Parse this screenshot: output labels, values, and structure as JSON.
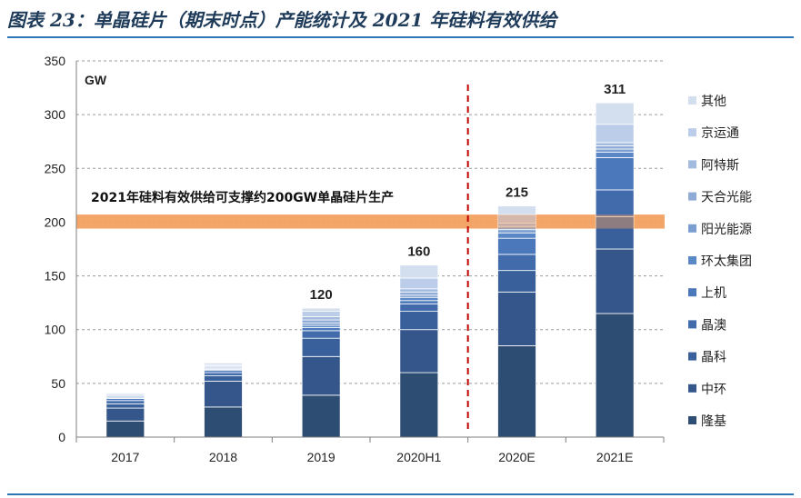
{
  "header": {
    "title": "图表 23：单晶硅片（期末时点）产能统计及 2021 年硅料有效供给"
  },
  "chart_data": {
    "type": "bar",
    "stacked": true,
    "unit": "GW",
    "categories": [
      "2017",
      "2018",
      "2019",
      "2020H1",
      "2020E",
      "2021E"
    ],
    "ylim": [
      0,
      350
    ],
    "yticks": [
      0,
      50,
      100,
      150,
      200,
      250,
      300,
      350
    ],
    "grid": true,
    "legend_position": "right",
    "totals": [
      "",
      "",
      "120",
      "160",
      "215",
      "311"
    ],
    "series": [
      {
        "name": "隆基",
        "color": "#2e4d72",
        "values": [
          15,
          28,
          39,
          60,
          85,
          115
        ]
      },
      {
        "name": "中环",
        "color": "#34568a",
        "values": [
          12,
          24,
          36,
          40,
          50,
          60
        ]
      },
      {
        "name": "晶科",
        "color": "#3a609c",
        "values": [
          4,
          5,
          17,
          17,
          20,
          30
        ]
      },
      {
        "name": "晶澳",
        "color": "#416bab",
        "values": [
          3,
          3,
          7,
          7,
          15,
          25
        ]
      },
      {
        "name": "上机",
        "color": "#4a78bb",
        "values": [
          2,
          2,
          3,
          3,
          15,
          30
        ]
      },
      {
        "name": "环太集团",
        "color": "#5a87c5",
        "values": [
          1,
          1,
          2,
          3,
          5,
          5
        ]
      },
      {
        "name": "阳光能源",
        "color": "#7b9dcf",
        "values": [
          1,
          1,
          2,
          2,
          3,
          3
        ]
      },
      {
        "name": "天合光能",
        "color": "#8fabd6",
        "values": [
          1,
          1,
          3,
          3,
          3,
          3
        ]
      },
      {
        "name": "阿特斯",
        "color": "#a4bbe0",
        "values": [
          1,
          1,
          3,
          3,
          3,
          3
        ]
      },
      {
        "name": "京运通",
        "color": "#bccde9",
        "values": [
          1,
          1,
          5,
          10,
          8,
          17
        ]
      },
      {
        "name": "其他",
        "color": "#d3deef",
        "values": [
          0,
          2,
          3,
          12,
          8,
          20
        ]
      }
    ],
    "annotations": {
      "band_label": "2021年硅料有效供给可支撑约200GW单晶硅片生产",
      "band_range": [
        194,
        207
      ],
      "band_color": "#f4a060",
      "divider_after_category": "2020H1",
      "divider_color": "#c00000"
    }
  }
}
